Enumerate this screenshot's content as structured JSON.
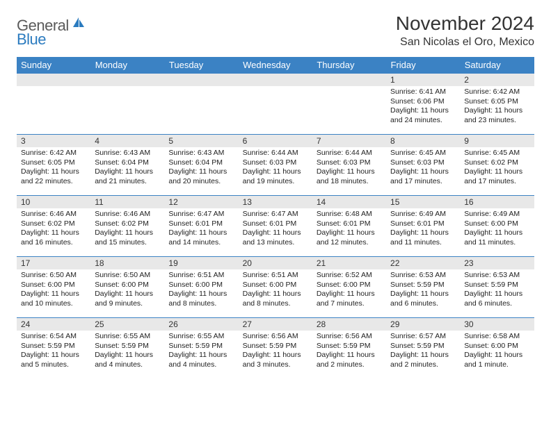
{
  "logo": {
    "part1": "General",
    "part2": "Blue"
  },
  "title": "November 2024",
  "location": "San Nicolas el Oro, Mexico",
  "header_bg": "#3b82c4",
  "header_fg": "#ffffff",
  "daynum_bg": "#e8e8e8",
  "border_color": "#3b82c4",
  "columns": [
    "Sunday",
    "Monday",
    "Tuesday",
    "Wednesday",
    "Thursday",
    "Friday",
    "Saturday"
  ],
  "weeks": [
    [
      null,
      null,
      null,
      null,
      null,
      {
        "n": "1",
        "sr": "6:41 AM",
        "ss": "6:06 PM",
        "dl": "11 hours and 24 minutes."
      },
      {
        "n": "2",
        "sr": "6:42 AM",
        "ss": "6:05 PM",
        "dl": "11 hours and 23 minutes."
      }
    ],
    [
      {
        "n": "3",
        "sr": "6:42 AM",
        "ss": "6:05 PM",
        "dl": "11 hours and 22 minutes."
      },
      {
        "n": "4",
        "sr": "6:43 AM",
        "ss": "6:04 PM",
        "dl": "11 hours and 21 minutes."
      },
      {
        "n": "5",
        "sr": "6:43 AM",
        "ss": "6:04 PM",
        "dl": "11 hours and 20 minutes."
      },
      {
        "n": "6",
        "sr": "6:44 AM",
        "ss": "6:03 PM",
        "dl": "11 hours and 19 minutes."
      },
      {
        "n": "7",
        "sr": "6:44 AM",
        "ss": "6:03 PM",
        "dl": "11 hours and 18 minutes."
      },
      {
        "n": "8",
        "sr": "6:45 AM",
        "ss": "6:03 PM",
        "dl": "11 hours and 17 minutes."
      },
      {
        "n": "9",
        "sr": "6:45 AM",
        "ss": "6:02 PM",
        "dl": "11 hours and 17 minutes."
      }
    ],
    [
      {
        "n": "10",
        "sr": "6:46 AM",
        "ss": "6:02 PM",
        "dl": "11 hours and 16 minutes."
      },
      {
        "n": "11",
        "sr": "6:46 AM",
        "ss": "6:02 PM",
        "dl": "11 hours and 15 minutes."
      },
      {
        "n": "12",
        "sr": "6:47 AM",
        "ss": "6:01 PM",
        "dl": "11 hours and 14 minutes."
      },
      {
        "n": "13",
        "sr": "6:47 AM",
        "ss": "6:01 PM",
        "dl": "11 hours and 13 minutes."
      },
      {
        "n": "14",
        "sr": "6:48 AM",
        "ss": "6:01 PM",
        "dl": "11 hours and 12 minutes."
      },
      {
        "n": "15",
        "sr": "6:49 AM",
        "ss": "6:01 PM",
        "dl": "11 hours and 11 minutes."
      },
      {
        "n": "16",
        "sr": "6:49 AM",
        "ss": "6:00 PM",
        "dl": "11 hours and 11 minutes."
      }
    ],
    [
      {
        "n": "17",
        "sr": "6:50 AM",
        "ss": "6:00 PM",
        "dl": "11 hours and 10 minutes."
      },
      {
        "n": "18",
        "sr": "6:50 AM",
        "ss": "6:00 PM",
        "dl": "11 hours and 9 minutes."
      },
      {
        "n": "19",
        "sr": "6:51 AM",
        "ss": "6:00 PM",
        "dl": "11 hours and 8 minutes."
      },
      {
        "n": "20",
        "sr": "6:51 AM",
        "ss": "6:00 PM",
        "dl": "11 hours and 8 minutes."
      },
      {
        "n": "21",
        "sr": "6:52 AM",
        "ss": "6:00 PM",
        "dl": "11 hours and 7 minutes."
      },
      {
        "n": "22",
        "sr": "6:53 AM",
        "ss": "5:59 PM",
        "dl": "11 hours and 6 minutes."
      },
      {
        "n": "23",
        "sr": "6:53 AM",
        "ss": "5:59 PM",
        "dl": "11 hours and 6 minutes."
      }
    ],
    [
      {
        "n": "24",
        "sr": "6:54 AM",
        "ss": "5:59 PM",
        "dl": "11 hours and 5 minutes."
      },
      {
        "n": "25",
        "sr": "6:55 AM",
        "ss": "5:59 PM",
        "dl": "11 hours and 4 minutes."
      },
      {
        "n": "26",
        "sr": "6:55 AM",
        "ss": "5:59 PM",
        "dl": "11 hours and 4 minutes."
      },
      {
        "n": "27",
        "sr": "6:56 AM",
        "ss": "5:59 PM",
        "dl": "11 hours and 3 minutes."
      },
      {
        "n": "28",
        "sr": "6:56 AM",
        "ss": "5:59 PM",
        "dl": "11 hours and 2 minutes."
      },
      {
        "n": "29",
        "sr": "6:57 AM",
        "ss": "5:59 PM",
        "dl": "11 hours and 2 minutes."
      },
      {
        "n": "30",
        "sr": "6:58 AM",
        "ss": "6:00 PM",
        "dl": "11 hours and 1 minute."
      }
    ]
  ],
  "labels": {
    "sunrise": "Sunrise: ",
    "sunset": "Sunset: ",
    "daylight": "Daylight: "
  }
}
